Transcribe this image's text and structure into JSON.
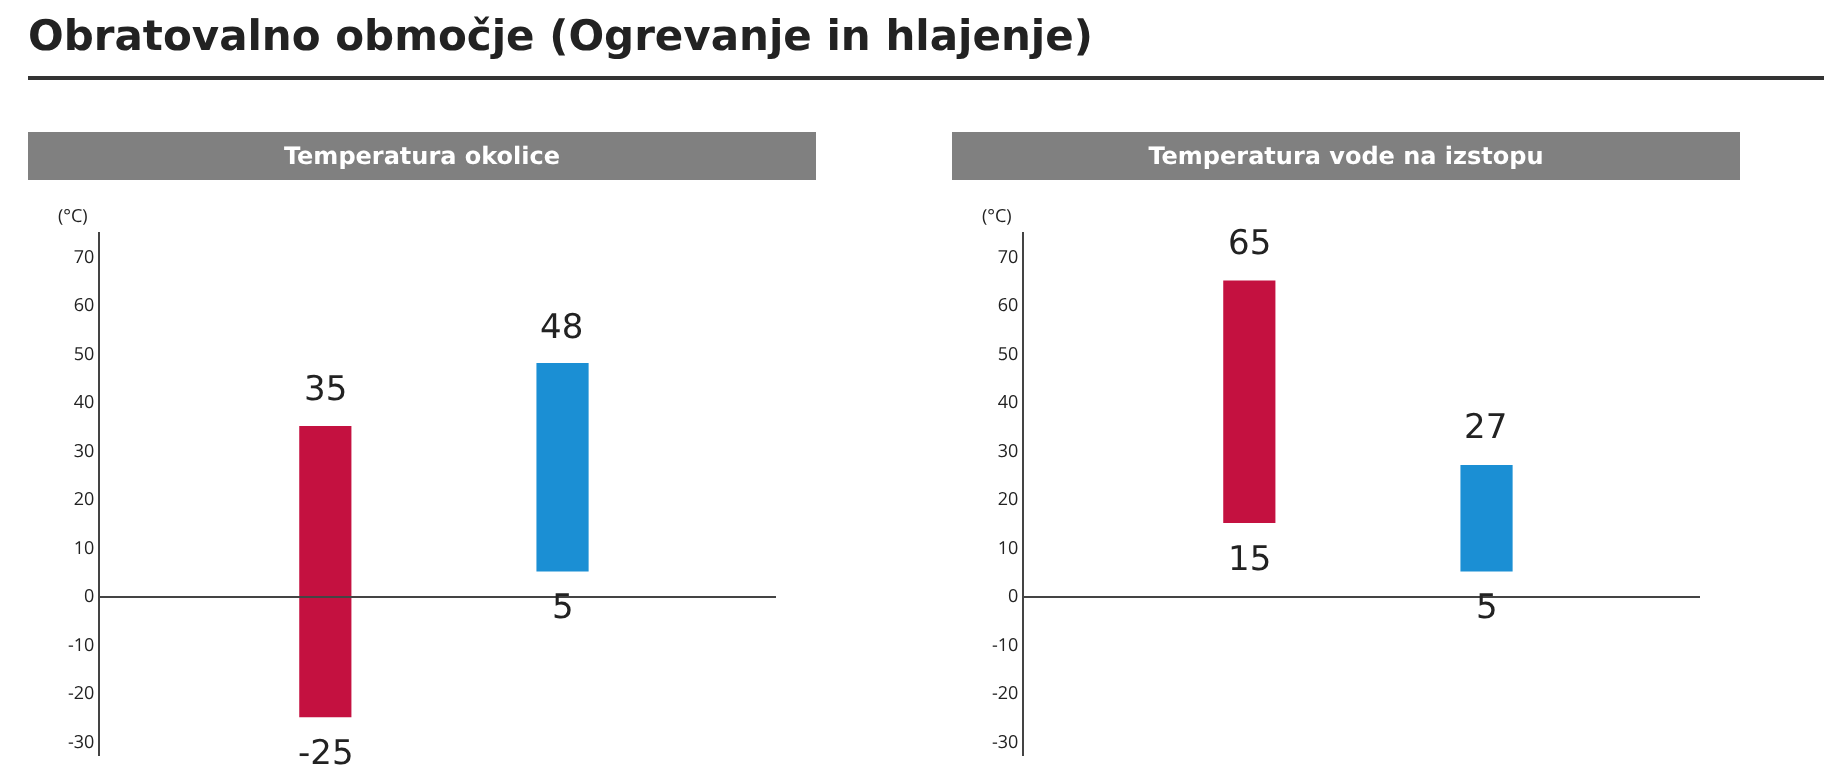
{
  "chart_data": [
    {
      "type": "bar",
      "title": "Temperatura okolice",
      "ylabel": "(°C)",
      "annotations": [
        "Obratovalno območje (Ogrevanje in hlajenje)",
        {
          "text": "35",
          "y": 35
        },
        {
          "text": "-25",
          "y": -25
        },
        {
          "text": "48",
          "y": 48
        },
        {
          "text": "5",
          "y": 5
        }
      ],
      "categories": [
        null,
        null
      ],
      "base": [
        -25,
        5
      ],
      "values": [
        60,
        43
      ],
      "colors": [
        "#c41140",
        "#1b8fd4"
      ],
      "ylim": [
        -33,
        75
      ],
      "yticks": [
        -30,
        -20,
        -10,
        0,
        10,
        20,
        30,
        40,
        50,
        60,
        70
      ],
      "legend": false
    },
    {
      "type": "bar",
      "title": "Temperatura vode na izstopu",
      "ylabel": "(°C)",
      "annotations": [
        {
          "text": "65",
          "y": 65
        },
        {
          "text": "15",
          "y": 15
        },
        {
          "text": "27",
          "y": 27
        },
        {
          "text": "5",
          "y": 5
        }
      ],
      "categories": [
        null,
        null
      ],
      "base": [
        15,
        5
      ],
      "values": [
        50,
        22
      ],
      "colors": [
        "#c41140",
        "#1b8fd4"
      ],
      "ylim": [
        -33,
        75
      ],
      "yticks": [
        -30,
        -20,
        -10,
        0,
        10,
        20,
        30,
        40,
        50,
        60,
        70
      ],
      "legend": false
    }
  ]
}
